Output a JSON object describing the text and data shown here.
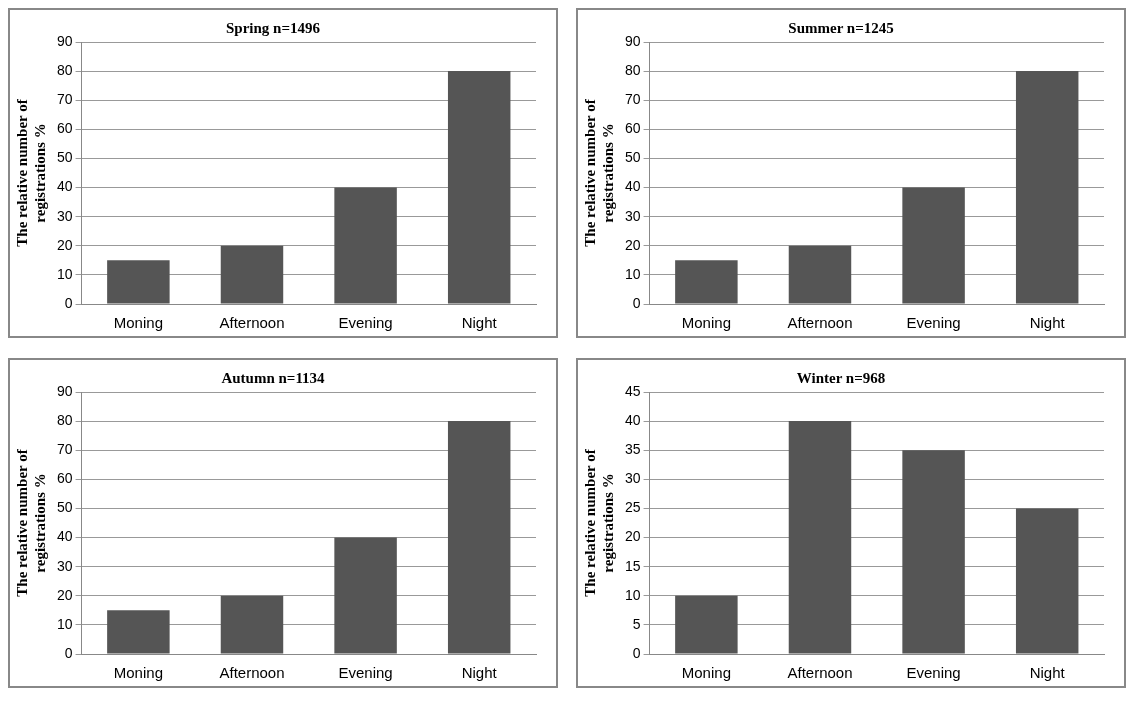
{
  "chart_data": [
    {
      "type": "bar",
      "title": "Spring n=1496",
      "ylabel": "The relative number of registrations %",
      "categories": [
        "Moning",
        "Afternoon",
        "Evening",
        "Night"
      ],
      "values": [
        15,
        20,
        40,
        80
      ],
      "color": "#555555",
      "ylim": [
        0,
        90
      ],
      "yticks": [
        0,
        10,
        20,
        30,
        40,
        50,
        60,
        70,
        80,
        90
      ],
      "grid": "y"
    },
    {
      "type": "bar",
      "title": "Summer n=1245",
      "ylabel": "The relative number of registrations %",
      "categories": [
        "Moning",
        "Afternoon",
        "Evening",
        "Night"
      ],
      "values": [
        15,
        20,
        40,
        80
      ],
      "color": "#555555",
      "ylim": [
        0,
        90
      ],
      "yticks": [
        0,
        10,
        20,
        30,
        40,
        50,
        60,
        70,
        80,
        90
      ],
      "grid": "y"
    },
    {
      "type": "bar",
      "title": "Autumn n=1134",
      "ylabel": "The relative number of registrations %",
      "categories": [
        "Moning",
        "Afternoon",
        "Evening",
        "Night"
      ],
      "values": [
        15,
        20,
        40,
        80
      ],
      "color": "#555555",
      "ylim": [
        0,
        90
      ],
      "yticks": [
        0,
        10,
        20,
        30,
        40,
        50,
        60,
        70,
        80,
        90
      ],
      "grid": "y"
    },
    {
      "type": "bar",
      "title": "Winter n=968",
      "ylabel": "The relative number of registrations %",
      "categories": [
        "Moning",
        "Afternoon",
        "Evening",
        "Night"
      ],
      "values": [
        10,
        40,
        35,
        25
      ],
      "color": "#555555",
      "ylim": [
        0,
        45
      ],
      "yticks": [
        0,
        5,
        10,
        15,
        20,
        25,
        30,
        35,
        40,
        45
      ],
      "grid": "y"
    }
  ]
}
